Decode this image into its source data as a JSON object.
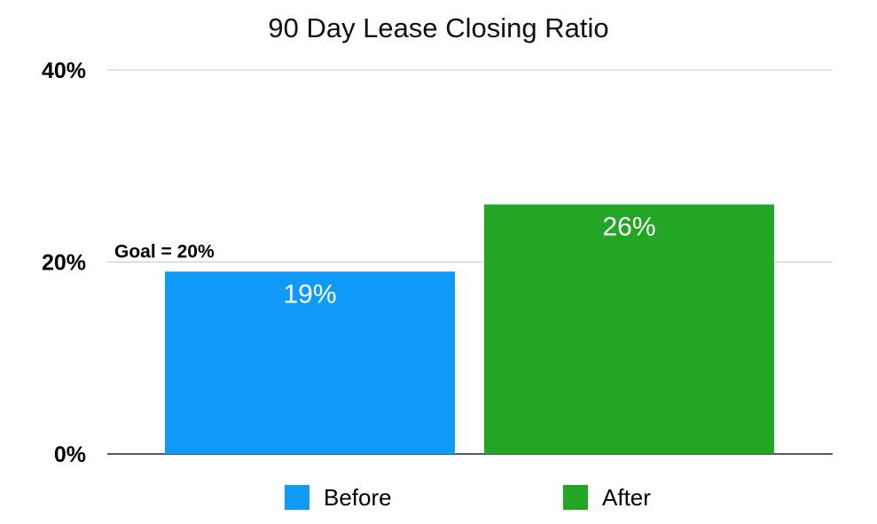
{
  "chart_data": {
    "type": "bar",
    "title": "90 Day Lease Closing Ratio",
    "xlabel": "",
    "ylabel": "",
    "ylim": [
      0,
      40
    ],
    "y_ticks": [
      0,
      20,
      40
    ],
    "y_tick_labels": [
      "0%",
      "20%",
      "40%"
    ],
    "grid": true,
    "legend_position": "bottom",
    "categories": [
      ""
    ],
    "series": [
      {
        "name": "Before",
        "values": [
          19
        ],
        "data_label": "19%",
        "color": "#0f9af7"
      },
      {
        "name": "After",
        "values": [
          26
        ],
        "data_label": "26%",
        "color": "#23a526"
      }
    ],
    "annotations": [
      {
        "text": "Goal = 20%",
        "value": 20
      }
    ]
  }
}
